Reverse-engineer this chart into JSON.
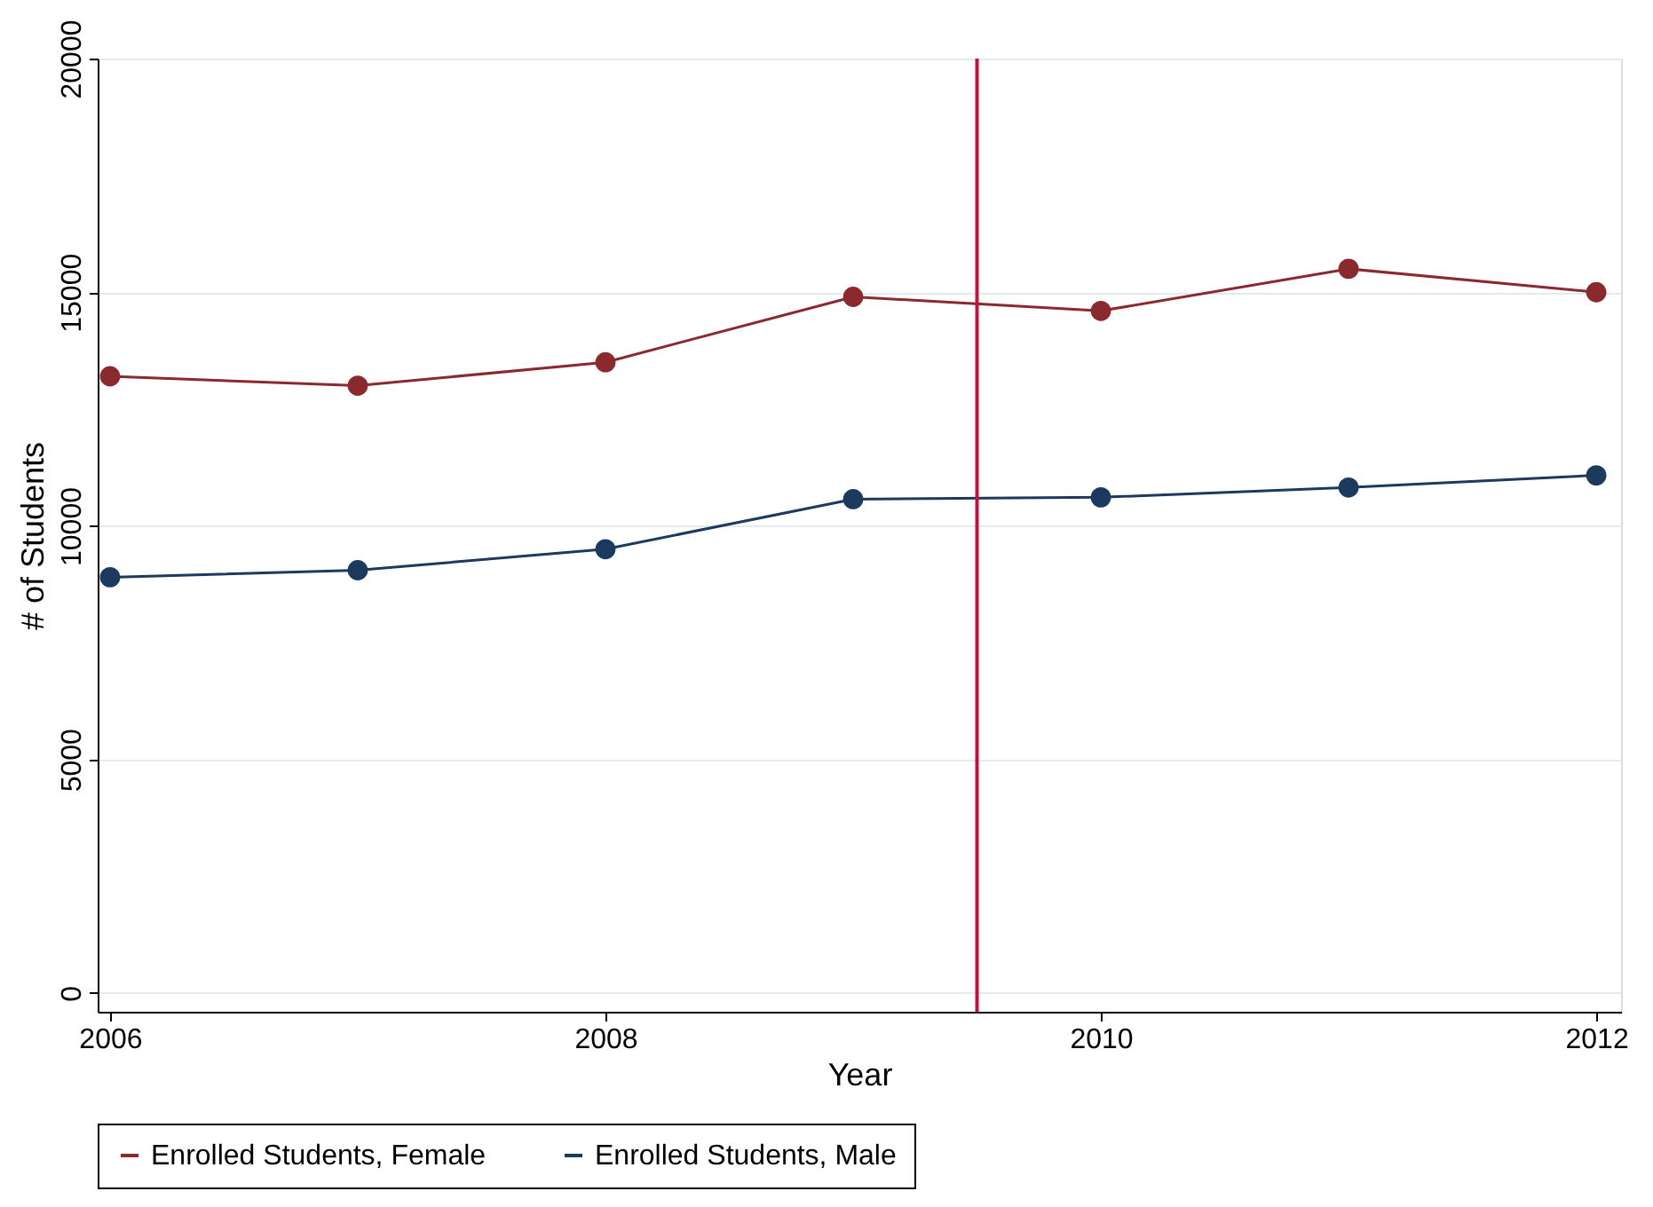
{
  "chart_data": {
    "type": "line",
    "xlabel": "Year",
    "ylabel": "# of Students",
    "x": [
      2006,
      2007,
      2008,
      2009,
      2010,
      2011,
      2012
    ],
    "series": [
      {
        "name": "Enrolled Students, Female",
        "color": "#8a2a2e",
        "values": [
          13200,
          13000,
          13500,
          14900,
          14600,
          15500,
          15000
        ]
      },
      {
        "name": "Enrolled Students, Male",
        "color": "#1b3a5e",
        "values": [
          8900,
          9050,
          9500,
          10570,
          10610,
          10820,
          11080
        ]
      }
    ],
    "xlim": [
      2005.95,
      2012.1
    ],
    "xticks": [
      2006,
      2008,
      2010,
      2012
    ],
    "ylim": [
      -400,
      20000
    ],
    "yticks": [
      0,
      5000,
      10000,
      15000,
      20000
    ],
    "ref_lines": [
      {
        "axis": "x",
        "value": 2009.5,
        "color": "#c0143c"
      }
    ],
    "grid": "y",
    "legend": "bottom",
    "marker": "circle",
    "line_style": "solid"
  }
}
